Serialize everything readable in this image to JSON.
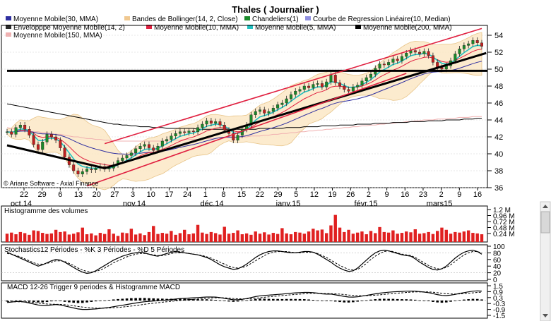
{
  "title": "Thales  ( Journalier )",
  "legend": [
    {
      "label": "Moyenne Mobile(30, MMA)",
      "color": "#2f2fa0"
    },
    {
      "label": "Bandes de Bollinger(14, 2, Close)",
      "color": "#f0c890"
    },
    {
      "label": "Chandeliers(1)",
      "color": "#1a8a2a"
    },
    {
      "label": "Courbe de Regression Linéaire(10, Median)",
      "color": "#9090e0"
    },
    {
      "label": "Envelopppe Moyenne Mobile(14, 2)",
      "color": "#2a2a2a"
    },
    {
      "label": "Moyenne Mobile(10, MMA)",
      "color": "#e02040"
    },
    {
      "label": "Moyenne Mobile(5, MMA)",
      "color": "#20c0c0"
    },
    {
      "label": "Moyenne Mobile(200, MMA)",
      "color": "#000000"
    },
    {
      "label": "Moyenne Mobile(150, MMA)",
      "color": "#f0b0b0"
    }
  ],
  "copyright": "© Ariane Software - Axial Finance",
  "chart_data": {
    "type": "line",
    "price": {
      "ylim": [
        36,
        55
      ],
      "yticks": [
        36,
        38,
        40,
        42,
        44,
        46,
        48,
        50,
        52,
        54
      ],
      "x_day_labels": [
        "22",
        "29",
        "6",
        "13",
        "20",
        "27",
        "3",
        "10",
        "17",
        "24",
        "1",
        "8",
        "15",
        "22",
        "29",
        "5",
        "12",
        "19",
        "26",
        "2",
        "9",
        "16",
        "23",
        "2",
        "9",
        "16"
      ],
      "x_month_labels": [
        "oct.14",
        "nov.14",
        "déc.14",
        "janv.15",
        "févr.15",
        "mars15"
      ],
      "close": [
        42.6,
        42.3,
        43.1,
        43.4,
        42.9,
        42.2,
        41.1,
        40.5,
        41.4,
        42.3,
        42.0,
        41.6,
        40.7,
        39.6,
        38.7,
        38.0,
        37.6,
        37.9,
        38.2,
        38.1,
        38.3,
        38.5,
        38.2,
        38.3,
        38.7,
        39.2,
        39.5,
        39.8,
        40.1,
        40.6,
        40.9,
        41.1,
        40.7,
        40.4,
        40.9,
        41.5,
        41.7,
        42.1,
        42.4,
        42.6,
        42.5,
        42.7,
        42.6,
        43.1,
        43.5,
        43.9,
        43.6,
        43.8,
        43.4,
        42.8,
        42.4,
        41.6,
        42.2,
        42.9,
        43.4,
        44.6,
        45.0,
        45.2,
        44.8,
        45.0,
        45.4,
        45.8,
        46.0,
        46.5,
        47.0,
        47.4,
        47.6,
        48.0,
        47.8,
        48.2,
        48.3,
        47.9,
        48.5,
        49.3,
        48.4,
        48.0,
        47.6,
        47.4,
        47.9,
        48.1,
        48.6,
        49.0,
        49.4,
        50.1,
        50.6,
        50.5,
        50.8,
        51.2,
        51.0,
        51.5,
        51.9,
        52.2,
        52.0,
        51.8,
        52.1,
        51.6,
        50.8,
        50.2,
        50.0,
        50.4,
        51.0,
        51.8,
        52.4,
        52.8,
        53.0,
        53.4,
        53.1,
        52.7
      ],
      "ma200": [
        45.9,
        45.8,
        45.7,
        45.6,
        45.5,
        45.4,
        45.3,
        45.2,
        45.1,
        45.0,
        44.9,
        44.8,
        44.7,
        44.6,
        44.5,
        44.4,
        44.3,
        44.2,
        44.1,
        44.0,
        43.9,
        43.8,
        43.7,
        43.6,
        43.5,
        43.5,
        43.4,
        43.4,
        43.3,
        43.3,
        43.2,
        43.2,
        43.2,
        43.1,
        43.1,
        43.1,
        43.0,
        43.0,
        43.0,
        43.0,
        43.0,
        43.0,
        43.0,
        42.9,
        42.9,
        42.9,
        42.9,
        42.9,
        42.9,
        42.9,
        42.9,
        42.9,
        42.9,
        42.9,
        42.9,
        42.9,
        42.9,
        43.0,
        43.0,
        43.0,
        43.0,
        43.0,
        43.0,
        43.1,
        43.1,
        43.1,
        43.1,
        43.2,
        43.2,
        43.2,
        43.2,
        43.3,
        43.3,
        43.3,
        43.3,
        43.4,
        43.4,
        43.4,
        43.4,
        43.5,
        43.5,
        43.5,
        43.5,
        43.6,
        43.6,
        43.6,
        43.6,
        43.7,
        43.7,
        43.7,
        43.7,
        43.8,
        43.8,
        43.8,
        43.8,
        43.9,
        43.9,
        43.9,
        43.9,
        44.0,
        44.0,
        44.0,
        44.0,
        44.1,
        44.1,
        44.1,
        44.2,
        44.2
      ],
      "ma150": [
        43.1,
        43.0,
        42.9,
        42.8,
        42.8,
        42.7,
        42.6,
        42.6,
        42.5,
        42.5,
        42.4,
        42.3,
        42.3,
        42.2,
        42.1,
        42.0,
        42.0,
        41.9,
        41.8,
        41.8,
        41.7,
        41.7,
        41.6,
        41.6,
        41.5,
        41.5,
        41.5,
        41.5,
        41.5,
        41.5,
        41.5,
        41.5,
        41.5,
        41.5,
        41.5,
        41.5,
        41.6,
        41.6,
        41.6,
        41.6,
        41.7,
        41.7,
        41.7,
        41.7,
        41.8,
        41.8,
        41.8,
        41.8,
        41.9,
        41.9,
        41.9,
        41.9,
        42.0,
        42.0,
        42.0,
        42.1,
        42.1,
        42.1,
        42.2,
        42.2,
        42.3,
        42.3,
        42.4,
        42.4,
        42.5,
        42.5,
        42.6,
        42.6,
        42.7,
        42.7,
        42.8,
        42.8,
        42.9,
        42.9,
        43.0,
        43.0,
        43.1,
        43.1,
        43.2,
        43.2,
        43.3,
        43.3,
        43.4,
        43.4,
        43.5,
        43.5,
        43.6,
        43.6,
        43.7,
        43.7,
        43.8,
        43.8,
        43.9,
        43.9,
        44.0,
        44.0,
        44.0,
        44.1,
        44.1,
        44.1,
        44.2,
        44.2,
        44.3,
        44.3,
        44.3,
        44.4,
        44.4,
        44.4
      ],
      "trendlines": [
        {
          "name": "support-black-1",
          "color": "#000000",
          "points": [
            [
              0,
              41.0
            ],
            [
              22,
              38.3
            ]
          ]
        },
        {
          "name": "support-black-2",
          "color": "#000000",
          "points": [
            [
              22,
              38.3
            ],
            [
              108,
              51.9
            ]
          ]
        },
        {
          "name": "horizontal-50",
          "color": "#000000",
          "points": [
            [
              0,
              49.8
            ],
            [
              110,
              49.8
            ]
          ]
        },
        {
          "name": "channel-red-upper",
          "color": "#e02040",
          "points": [
            [
              22,
              41.2
            ],
            [
              107,
              54.8
            ]
          ]
        },
        {
          "name": "channel-red-lower",
          "color": "#e02040",
          "points": [
            [
              18,
              36.2
            ],
            [
              90,
              49.5
            ]
          ]
        }
      ]
    },
    "volume": {
      "title": "Histogramme des volumes",
      "yticks": [
        "1.2 M",
        "0.96 M",
        "0.72 M",
        "0.48 M",
        "0.24 M"
      ],
      "values": [
        0.3,
        0.34,
        0.28,
        0.36,
        0.32,
        0.26,
        0.42,
        0.4,
        0.33,
        0.29,
        0.31,
        0.44,
        0.36,
        0.38,
        0.27,
        0.3,
        0.35,
        0.52,
        0.28,
        0.31,
        0.24,
        0.33,
        0.29,
        0.46,
        0.3,
        0.22,
        0.34,
        0.32,
        0.48,
        0.27,
        0.31,
        0.25,
        0.36,
        0.58,
        0.29,
        0.33,
        0.3,
        0.4,
        0.26,
        0.32,
        0.44,
        0.28,
        0.31,
        0.62,
        0.34,
        0.29,
        0.36,
        0.32,
        0.27,
        0.55,
        0.3,
        0.33,
        0.42,
        0.28,
        0.31,
        0.26,
        0.38,
        0.3,
        0.35,
        0.27,
        0.33,
        0.29,
        0.5,
        0.31,
        0.28,
        0.36,
        0.34,
        0.3,
        0.38,
        0.48,
        0.42,
        0.45,
        0.32,
        0.6,
        0.98,
        0.52,
        0.36,
        0.44,
        0.3,
        0.34,
        0.38,
        0.28,
        0.4,
        0.32,
        0.54,
        0.36,
        0.34,
        0.42,
        0.3,
        0.33,
        0.38,
        0.35,
        0.46,
        0.3,
        0.32,
        0.36,
        0.29,
        0.4,
        0.52,
        0.44,
        0.3,
        0.36,
        0.34,
        0.38,
        0.42,
        0.33,
        0.31,
        0.28
      ]
    },
    "stochastics": {
      "title": "Stochastics12 Périodes  -  %K 3 Périodes  -  %D 5 Périodes",
      "ylim": [
        0,
        100
      ],
      "yticks": [
        100,
        80,
        60,
        40,
        20,
        0
      ],
      "k": [
        82,
        76,
        70,
        64,
        58,
        52,
        46,
        40,
        44,
        50,
        56,
        60,
        58,
        52,
        44,
        36,
        28,
        22,
        18,
        20,
        26,
        34,
        42,
        50,
        58,
        64,
        70,
        74,
        78,
        80,
        82,
        80,
        76,
        72,
        70,
        74,
        78,
        82,
        84,
        82,
        80,
        78,
        76,
        74,
        70,
        66,
        60,
        52,
        44,
        38,
        34,
        30,
        32,
        38,
        46,
        56,
        66,
        74,
        80,
        84,
        86,
        86,
        84,
        82,
        80,
        80,
        82,
        84,
        84,
        82,
        76,
        68,
        60,
        52,
        42,
        34,
        28,
        24,
        26,
        34,
        46,
        58,
        70,
        80,
        86,
        88,
        86,
        82,
        78,
        74,
        72,
        70,
        62,
        52,
        44,
        36,
        30,
        28,
        32,
        40,
        52,
        64,
        74,
        82,
        86,
        88,
        84,
        76
      ],
      "d": [
        78,
        76,
        72,
        68,
        62,
        56,
        50,
        46,
        46,
        48,
        52,
        56,
        56,
        54,
        48,
        42,
        34,
        28,
        24,
        22,
        24,
        28,
        34,
        42,
        50,
        56,
        62,
        68,
        72,
        76,
        78,
        78,
        76,
        74,
        72,
        72,
        74,
        78,
        80,
        80,
        80,
        78,
        76,
        74,
        72,
        68,
        64,
        58,
        52,
        46,
        40,
        36,
        34,
        36,
        40,
        48,
        56,
        64,
        72,
        78,
        82,
        84,
        84,
        84,
        82,
        80,
        80,
        82,
        82,
        82,
        78,
        72,
        66,
        58,
        50,
        42,
        36,
        30,
        28,
        30,
        38,
        48,
        60,
        70,
        78,
        84,
        86,
        84,
        80,
        76,
        74,
        72,
        66,
        58,
        50,
        42,
        36,
        32,
        32,
        36,
        44,
        54,
        64,
        74,
        80,
        84,
        84,
        80
      ]
    },
    "macd": {
      "title": "MACD 12-26   Trigger 9 periodes & Histogramme MACD",
      "ylim": [
        -1.5,
        1.5
      ],
      "yticks": [
        1.5,
        0.9,
        0.3,
        -0.3,
        -0.9,
        -1.5
      ],
      "macd": [
        -0.2,
        -0.15,
        -0.1,
        -0.1,
        -0.15,
        -0.25,
        -0.35,
        -0.45,
        -0.5,
        -0.5,
        -0.45,
        -0.4,
        -0.45,
        -0.55,
        -0.65,
        -0.75,
        -0.85,
        -0.9,
        -0.9,
        -0.88,
        -0.85,
        -0.8,
        -0.75,
        -0.7,
        -0.62,
        -0.55,
        -0.48,
        -0.4,
        -0.32,
        -0.25,
        -0.18,
        -0.12,
        -0.08,
        -0.05,
        -0.02,
        0.02,
        0.05,
        0.1,
        0.15,
        0.2,
        0.22,
        0.25,
        0.28,
        0.3,
        0.33,
        0.36,
        0.36,
        0.35,
        0.3,
        0.22,
        0.15,
        0.08,
        0.08,
        0.12,
        0.2,
        0.3,
        0.4,
        0.48,
        0.52,
        0.55,
        0.58,
        0.62,
        0.65,
        0.7,
        0.74,
        0.78,
        0.8,
        0.82,
        0.82,
        0.8,
        0.75,
        0.68,
        0.65,
        0.66,
        0.58,
        0.5,
        0.42,
        0.36,
        0.35,
        0.38,
        0.45,
        0.52,
        0.6,
        0.68,
        0.75,
        0.8,
        0.84,
        0.88,
        0.9,
        0.92,
        0.95,
        0.96,
        0.95,
        0.9,
        0.86,
        0.8,
        0.7,
        0.6,
        0.52,
        0.5,
        0.55,
        0.62,
        0.72,
        0.8,
        0.88,
        0.95,
        0.98,
        0.96
      ],
      "trigger": [
        -0.1,
        -0.12,
        -0.12,
        -0.12,
        -0.12,
        -0.15,
        -0.2,
        -0.26,
        -0.31,
        -0.35,
        -0.37,
        -0.38,
        -0.39,
        -0.42,
        -0.47,
        -0.53,
        -0.6,
        -0.66,
        -0.71,
        -0.74,
        -0.77,
        -0.77,
        -0.77,
        -0.76,
        -0.73,
        -0.7,
        -0.66,
        -0.61,
        -0.56,
        -0.5,
        -0.44,
        -0.38,
        -0.32,
        -0.27,
        -0.22,
        -0.17,
        -0.12,
        -0.08,
        -0.03,
        0.01,
        0.05,
        0.09,
        0.13,
        0.16,
        0.2,
        0.23,
        0.26,
        0.28,
        0.28,
        0.27,
        0.25,
        0.21,
        0.18,
        0.17,
        0.17,
        0.2,
        0.24,
        0.28,
        0.33,
        0.38,
        0.42,
        0.46,
        0.5,
        0.54,
        0.58,
        0.62,
        0.65,
        0.68,
        0.71,
        0.73,
        0.73,
        0.72,
        0.71,
        0.7,
        0.68,
        0.65,
        0.61,
        0.56,
        0.52,
        0.49,
        0.48,
        0.49,
        0.51,
        0.54,
        0.58,
        0.62,
        0.67,
        0.71,
        0.75,
        0.78,
        0.82,
        0.85,
        0.87,
        0.88,
        0.88,
        0.87,
        0.84,
        0.79,
        0.74,
        0.69,
        0.67,
        0.66,
        0.67,
        0.7,
        0.74,
        0.78,
        0.82,
        0.85
      ]
    }
  }
}
